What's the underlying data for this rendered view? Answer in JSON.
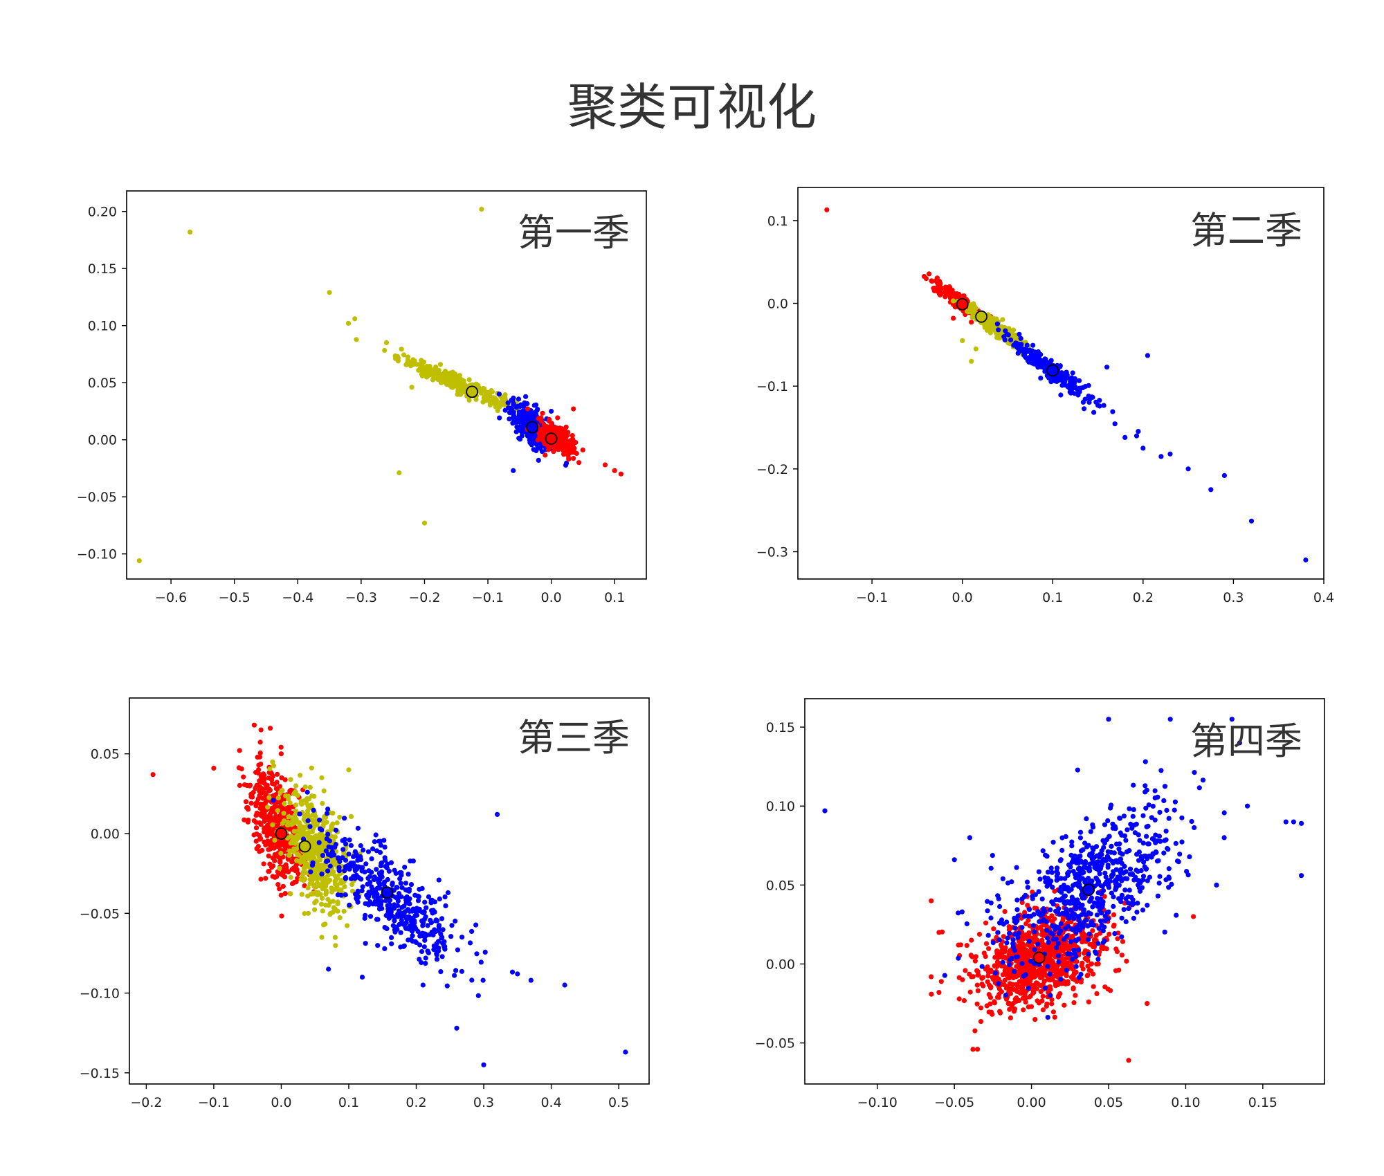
{
  "title": "聚类可视化",
  "colors": {
    "red": "#ff0000",
    "yellow": "#bfbf00",
    "blue": "#0000ff",
    "centroid": "#000000"
  },
  "chart_data": [
    {
      "type": "scatter",
      "title": "第一季",
      "xlim": [
        -0.67,
        0.15
      ],
      "ylim": [
        -0.122,
        0.218
      ],
      "xticks": [
        -0.6,
        -0.5,
        -0.4,
        -0.3,
        -0.2,
        -0.1,
        0.0,
        0.1
      ],
      "yticks": [
        -0.1,
        -0.05,
        0.0,
        0.05,
        0.1,
        0.15,
        0.2
      ],
      "xtick_labels": [
        "−0.6",
        "−0.5",
        "−0.4",
        "−0.3",
        "−0.2",
        "−0.1",
        "0.0",
        "0.1"
      ],
      "ytick_labels": [
        "−0.10",
        "−0.05",
        "0.00",
        "0.05",
        "0.10",
        "0.15",
        "0.20"
      ],
      "centroids": [
        {
          "color": "yellow",
          "x": -0.125,
          "y": 0.042
        },
        {
          "color": "blue",
          "x": -0.03,
          "y": 0.011
        },
        {
          "color": "red",
          "x": 0.0,
          "y": 0.001
        }
      ],
      "clusters": [
        {
          "color": "yellow",
          "cx": -0.15,
          "cy": 0.05,
          "sx": 0.045,
          "sy": 0.011,
          "rho": -0.95,
          "n": 320,
          "outliers": [
            [
              -0.57,
              0.182
            ],
            [
              -0.11,
              0.202
            ],
            [
              -0.35,
              0.129
            ],
            [
              -0.31,
              0.106
            ],
            [
              -0.32,
              0.102
            ],
            [
              -0.26,
              0.085
            ],
            [
              -0.65,
              -0.106
            ],
            [
              -0.24,
              -0.029
            ],
            [
              -0.2,
              -0.073
            ],
            [
              -0.22,
              0.046
            ]
          ]
        },
        {
          "color": "blue",
          "cx": -0.03,
          "cy": 0.012,
          "sx": 0.018,
          "sy": 0.01,
          "rho": -0.6,
          "n": 380,
          "outliers": [
            [
              -0.06,
              -0.027
            ],
            [
              -0.02,
              -0.018
            ],
            [
              0.0,
              0.025
            ]
          ]
        },
        {
          "color": "red",
          "cx": 0.01,
          "cy": 0.0,
          "sx": 0.015,
          "sy": 0.007,
          "rho": -0.5,
          "n": 220,
          "outliers": [
            [
              0.085,
              -0.022
            ],
            [
              0.1,
              -0.027
            ],
            [
              0.11,
              -0.03
            ],
            [
              0.035,
              0.027
            ],
            [
              0.04,
              -0.012
            ]
          ]
        }
      ]
    },
    {
      "type": "scatter",
      "title": "第二季",
      "xlim": [
        -0.182,
        0.4
      ],
      "ylim": [
        -0.333,
        0.14
      ],
      "xticks": [
        -0.1,
        0.0,
        0.1,
        0.2,
        0.3,
        0.4
      ],
      "yticks": [
        -0.3,
        -0.2,
        -0.1,
        0.0,
        0.1
      ],
      "xtick_labels": [
        "−0.1",
        "0.0",
        "0.1",
        "0.2",
        "0.3",
        "0.4"
      ],
      "ytick_labels": [
        "−0.3",
        "−0.2",
        "−0.1",
        "0.0",
        "0.1"
      ],
      "centroids": [
        {
          "color": "red",
          "x": 0.0,
          "y": -0.001
        },
        {
          "color": "yellow",
          "x": 0.021,
          "y": -0.016
        },
        {
          "color": "blue",
          "x": 0.1,
          "y": -0.081
        }
      ],
      "clusters": [
        {
          "color": "red",
          "cx": -0.005,
          "cy": 0.004,
          "sx": 0.012,
          "sy": 0.01,
          "rho": -0.9,
          "n": 220,
          "outliers": [
            [
              -0.15,
              0.113
            ],
            [
              -0.04,
              0.03
            ],
            [
              -0.01,
              -0.018
            ]
          ]
        },
        {
          "color": "yellow",
          "cx": 0.035,
          "cy": -0.028,
          "sx": 0.016,
          "sy": 0.013,
          "rho": -0.93,
          "n": 320,
          "outliers": [
            [
              0.0,
              -0.045
            ],
            [
              0.01,
              -0.07
            ],
            [
              0.015,
              -0.055
            ]
          ]
        },
        {
          "color": "blue",
          "cx": 0.1,
          "cy": -0.082,
          "sx": 0.025,
          "sy": 0.021,
          "rho": -0.96,
          "n": 220,
          "outliers": [
            [
              0.16,
              -0.077
            ],
            [
              0.205,
              -0.063
            ],
            [
              0.22,
              -0.185
            ],
            [
              0.23,
              -0.182
            ],
            [
              0.25,
              -0.2
            ],
            [
              0.275,
              -0.225
            ],
            [
              0.29,
              -0.208
            ],
            [
              0.32,
              -0.263
            ],
            [
              0.38,
              -0.31
            ],
            [
              0.18,
              -0.162
            ],
            [
              0.2,
              -0.175
            ]
          ]
        }
      ]
    },
    {
      "type": "scatter",
      "title": "第三季",
      "xlim": [
        -0.225,
        0.545
      ],
      "ylim": [
        -0.157,
        0.085
      ],
      "xticks": [
        -0.2,
        -0.1,
        0.0,
        0.1,
        0.2,
        0.3,
        0.4,
        0.5
      ],
      "yticks": [
        -0.15,
        -0.1,
        -0.05,
        0.0,
        0.05
      ],
      "xtick_labels": [
        "−0.2",
        "−0.1",
        "0.0",
        "0.1",
        "0.2",
        "0.3",
        "0.4",
        "0.5"
      ],
      "ytick_labels": [
        "−0.15",
        "−0.10",
        "−0.05",
        "0.00",
        "0.05"
      ],
      "centroids": [
        {
          "color": "red",
          "x": 0.0,
          "y": 0.0
        },
        {
          "color": "yellow",
          "x": 0.035,
          "y": -0.008
        },
        {
          "color": "blue",
          "x": 0.157,
          "y": -0.037
        }
      ],
      "clusters": [
        {
          "color": "red",
          "cx": -0.005,
          "cy": 0.004,
          "sx": 0.021,
          "sy": 0.019,
          "rho": -0.5,
          "n": 450,
          "outliers": [
            [
              -0.19,
              0.037
            ],
            [
              -0.1,
              0.041
            ],
            [
              -0.04,
              0.068
            ],
            [
              -0.03,
              0.065
            ],
            [
              0.0,
              0.05
            ]
          ]
        },
        {
          "color": "yellow",
          "cx": 0.05,
          "cy": -0.012,
          "sx": 0.024,
          "sy": 0.018,
          "rho": -0.5,
          "n": 520,
          "outliers": [
            [
              0.1,
              0.04
            ],
            [
              0.06,
              0.035
            ],
            [
              0.04,
              -0.05
            ],
            [
              0.06,
              -0.065
            ]
          ]
        },
        {
          "color": "blue",
          "cx": 0.16,
          "cy": -0.04,
          "sx": 0.055,
          "sy": 0.022,
          "rho": -0.78,
          "n": 440,
          "outliers": [
            [
              0.32,
              0.012
            ],
            [
              0.42,
              -0.095
            ],
            [
              0.37,
              -0.092
            ],
            [
              0.26,
              -0.122
            ],
            [
              0.3,
              -0.145
            ],
            [
              0.51,
              -0.137
            ],
            [
              0.21,
              -0.095
            ],
            [
              0.12,
              -0.09
            ],
            [
              0.07,
              -0.085
            ],
            [
              0.35,
              -0.088
            ]
          ]
        }
      ]
    },
    {
      "type": "scatter",
      "title": "第四季",
      "xlim": [
        -0.147,
        0.19
      ],
      "ylim": [
        -0.076,
        0.168
      ],
      "xticks": [
        -0.1,
        -0.05,
        0.0,
        0.05,
        0.1,
        0.15
      ],
      "yticks": [
        -0.05,
        0.0,
        0.05,
        0.1,
        0.15
      ],
      "xtick_labels": [
        "−0.10",
        "−0.05",
        "0.00",
        "0.05",
        "0.10",
        "0.15"
      ],
      "ytick_labels": [
        "−0.05",
        "0.00",
        "0.05",
        "0.10",
        "0.15"
      ],
      "centroids": [
        {
          "color": "red",
          "x": 0.005,
          "y": 0.004
        },
        {
          "color": "blue",
          "x": 0.037,
          "y": 0.047
        }
      ],
      "clusters": [
        {
          "color": "red",
          "cx": 0.005,
          "cy": 0.004,
          "sx": 0.022,
          "sy": 0.016,
          "rho": 0.35,
          "n": 950,
          "outliers": [
            [
              -0.035,
              -0.054
            ],
            [
              0.063,
              -0.061
            ],
            [
              -0.06,
              -0.018
            ],
            [
              0.075,
              -0.025
            ],
            [
              -0.065,
              0.04
            ],
            [
              -0.06,
              0.02
            ],
            [
              0.105,
              0.03
            ]
          ]
        },
        {
          "color": "blue",
          "cx": 0.037,
          "cy": 0.047,
          "sx": 0.03,
          "sy": 0.027,
          "rho": 0.6,
          "n": 650,
          "outliers": [
            [
              -0.134,
              0.097
            ],
            [
              0.05,
              0.155
            ],
            [
              0.09,
              0.155
            ],
            [
              0.13,
              0.155
            ],
            [
              0.17,
              0.09
            ],
            [
              0.175,
              0.089
            ],
            [
              0.175,
              0.056
            ],
            [
              0.165,
              0.09
            ],
            [
              0.12,
              0.05
            ],
            [
              0.125,
              0.08
            ],
            [
              -0.05,
              0.066
            ],
            [
              -0.04,
              0.08
            ],
            [
              0.135,
              0.14
            ],
            [
              -0.045,
              0.033
            ],
            [
              0.14,
              0.1
            ]
          ]
        }
      ]
    }
  ]
}
